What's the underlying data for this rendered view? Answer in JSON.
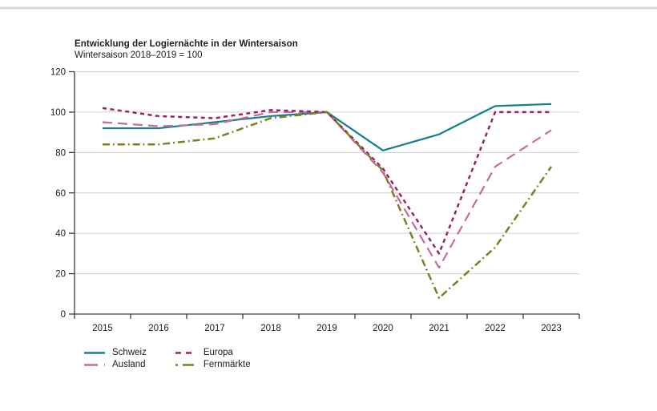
{
  "page": {
    "background": "#ffffff",
    "divider_color": "#cfcfcf"
  },
  "chart_data": {
    "type": "line",
    "title": "Entwicklung der Logiernächte in der Wintersaison",
    "subtitle": "Wintersaison 2018–2019 = 100",
    "categories": [
      "2015",
      "2016",
      "2017",
      "2018",
      "2019",
      "2020",
      "2021",
      "2022",
      "2023"
    ],
    "series": [
      {
        "name": "Schweiz",
        "color": "#12808e",
        "dash": "solid",
        "values": [
          92,
          92,
          95,
          98,
          100,
          81,
          89,
          103,
          104
        ]
      },
      {
        "name": "Ausland",
        "color": "#c9699f",
        "dash": "long-dash",
        "values": [
          95,
          93,
          94,
          100,
          100,
          70,
          23,
          73,
          91
        ]
      },
      {
        "name": "Europa",
        "color": "#9e2064",
        "dash": "short-dash",
        "values": [
          102,
          98,
          97,
          101,
          100,
          72,
          30,
          100,
          100
        ]
      },
      {
        "name": "Fernmärkte",
        "color": "#7d7d22",
        "dash": "dash-dot",
        "values": [
          84,
          84,
          87,
          97,
          100,
          71,
          8,
          33,
          73
        ]
      }
    ],
    "ylim": [
      0,
      120
    ],
    "ytick_step": 20,
    "yticks": [
      "0",
      "20",
      "40",
      "60",
      "80",
      "100",
      "120"
    ],
    "grid": true,
    "legend_position": "bottom-left",
    "axis_color": "#3c3c3c",
    "grid_color": "#d0d0d0",
    "legend_order": [
      0,
      2,
      1,
      3
    ]
  }
}
